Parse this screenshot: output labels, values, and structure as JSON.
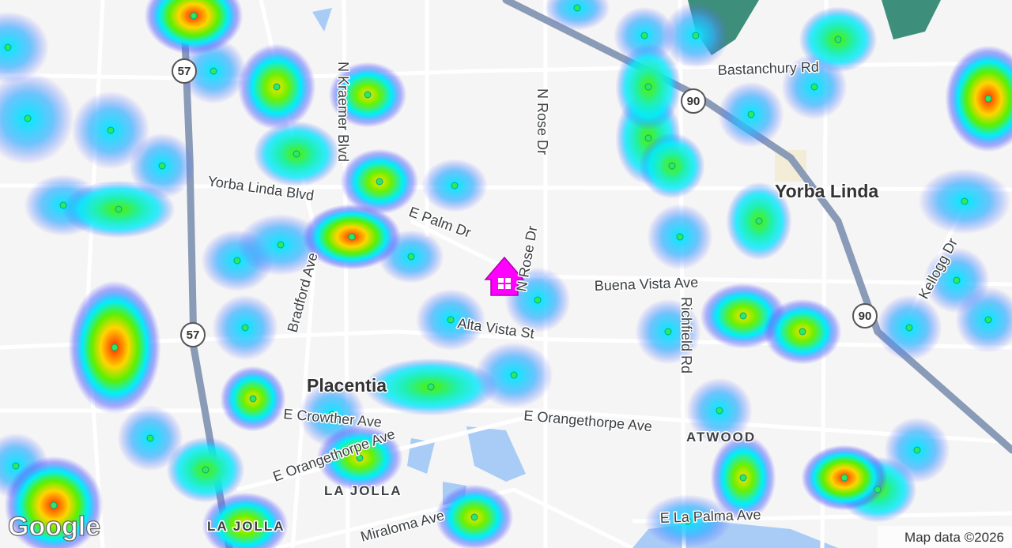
{
  "map": {
    "labels": [
      "N Kraemer Blvd",
      "N Rose Dr",
      "Bastanchury Rd",
      "Yorba Linda Blvd",
      "Yorba Linda",
      "E Palm Dr",
      "N Rose Dr",
      "Buena Vista Ave",
      "Kellogg Dr",
      "Bradford Ave",
      "Alta Vista St",
      "Richfield Rd",
      "Placentia",
      "E Crowther Ave",
      "E Orangethorpe Ave",
      "E Orangethorpe Ave",
      "ATWOOD",
      "LA JOLLA",
      "LA JOLLA",
      "Miraloma Ave",
      "E La Palma Ave"
    ],
    "shields": [
      "57",
      "57",
      "90",
      "90"
    ],
    "attribution": "Map data ©2026",
    "logo": "Google"
  }
}
